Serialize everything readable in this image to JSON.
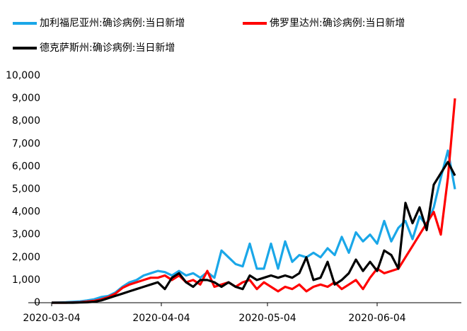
{
  "chart_data": {
    "type": "line",
    "x": [
      "2020-03-04",
      "2020-03-06",
      "2020-03-08",
      "2020-03-10",
      "2020-03-12",
      "2020-03-14",
      "2020-03-16",
      "2020-03-18",
      "2020-03-20",
      "2020-03-22",
      "2020-03-24",
      "2020-03-26",
      "2020-03-28",
      "2020-03-30",
      "2020-04-01",
      "2020-04-03",
      "2020-04-05",
      "2020-04-07",
      "2020-04-09",
      "2020-04-11",
      "2020-04-13",
      "2020-04-15",
      "2020-04-17",
      "2020-04-19",
      "2020-04-21",
      "2020-04-23",
      "2020-04-25",
      "2020-04-27",
      "2020-04-29",
      "2020-05-01",
      "2020-05-03",
      "2020-05-05",
      "2020-05-07",
      "2020-05-09",
      "2020-05-11",
      "2020-05-13",
      "2020-05-15",
      "2020-05-17",
      "2020-05-19",
      "2020-05-21",
      "2020-05-23",
      "2020-05-25",
      "2020-05-27",
      "2020-05-29",
      "2020-05-31",
      "2020-06-02",
      "2020-06-04",
      "2020-06-06",
      "2020-06-08",
      "2020-06-10",
      "2020-06-12",
      "2020-06-14",
      "2020-06-16",
      "2020-06-18",
      "2020-06-20",
      "2020-06-22",
      "2020-06-24",
      "2020-06-26"
    ],
    "series": [
      {
        "name": "加利福尼亚州:确诊病例:当日新增",
        "color": "#1aa7e8",
        "values": [
          0,
          10,
          20,
          40,
          60,
          100,
          150,
          250,
          300,
          450,
          700,
          900,
          1000,
          1200,
          1300,
          1400,
          1350,
          1200,
          1400,
          1200,
          1300,
          1100,
          1350,
          1100,
          2300,
          2000,
          1700,
          1600,
          2600,
          1500,
          1500,
          2600,
          1500,
          2700,
          1800,
          2100,
          2000,
          2200,
          2000,
          2400,
          2100,
          2900,
          2200,
          3100,
          2700,
          3000,
          2600,
          3600,
          2700,
          3300,
          3600,
          2800,
          3800,
          3400,
          4200,
          5500,
          6700,
          5000
        ]
      },
      {
        "name": "佛罗里达州:确诊病例:当日新增",
        "color": "#ff0000",
        "values": [
          0,
          0,
          0,
          10,
          20,
          50,
          80,
          150,
          250,
          400,
          650,
          800,
          900,
          1000,
          1100,
          1100,
          1200,
          1000,
          1200,
          900,
          1000,
          800,
          1400,
          700,
          800,
          900,
          700,
          900,
          1000,
          600,
          900,
          700,
          500,
          700,
          600,
          800,
          500,
          700,
          800,
          700,
          900,
          600,
          800,
          1000,
          600,
          1100,
          1500,
          1300,
          1400,
          1500,
          2000,
          2500,
          3000,
          3500,
          4000,
          3000,
          5500,
          9000
        ]
      },
      {
        "name": "德克萨斯州:确诊病例:当日新增",
        "color": "#000000",
        "values": [
          0,
          0,
          0,
          0,
          10,
          20,
          40,
          100,
          200,
          300,
          400,
          500,
          600,
          700,
          800,
          900,
          600,
          1100,
          1300,
          900,
          700,
          1000,
          1000,
          900,
          700,
          900,
          700,
          600,
          1200,
          1000,
          1100,
          1200,
          1100,
          1200,
          1100,
          1300,
          2000,
          1000,
          1100,
          1800,
          800,
          1000,
          1300,
          1900,
          1400,
          1800,
          1400,
          2300,
          2100,
          1500,
          4400,
          3500,
          4200,
          3200,
          5200,
          5700,
          6200,
          5600
        ]
      }
    ],
    "xlim": [
      "2020-03-04",
      "2020-06-27"
    ],
    "xticks": [
      "2020-03-04",
      "2020-04-04",
      "2020-05-04",
      "2020-06-04"
    ],
    "ylim": [
      0,
      10000
    ],
    "yticks": [
      0,
      {
        "value": 1000,
        "label": "1,000"
      },
      {
        "value": 2000,
        "label": "2,000"
      },
      {
        "value": 3000,
        "label": "3,000"
      },
      {
        "value": 4000,
        "label": "4,000"
      },
      {
        "value": 5000,
        "label": "5,000"
      },
      {
        "value": 6000,
        "label": "6,000"
      },
      {
        "value": 7000,
        "label": "7,000"
      },
      {
        "value": 8000,
        "label": "8,000"
      },
      {
        "value": 9000,
        "label": "9,000"
      },
      {
        "value": 10000,
        "label": "10,000"
      }
    ],
    "legend": "top-left"
  }
}
